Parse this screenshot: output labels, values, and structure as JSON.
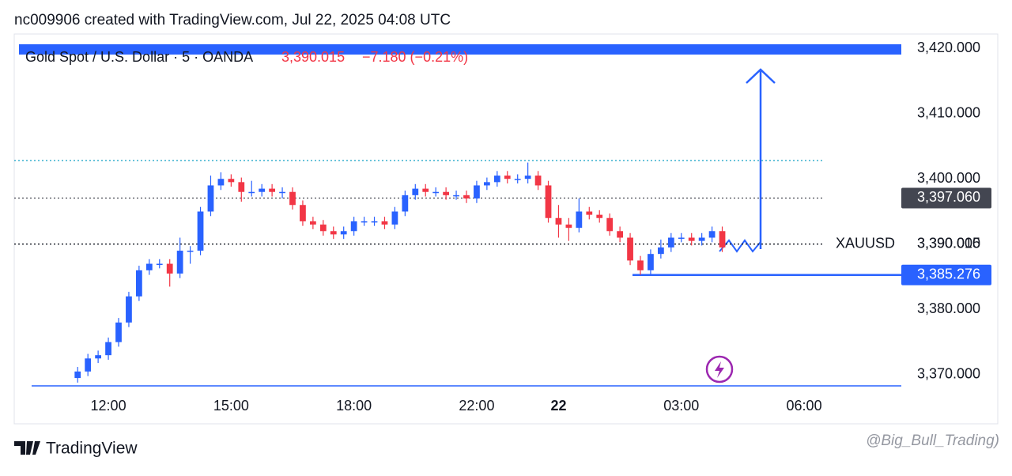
{
  "header": "nc009906 created with TradingView.com, Jul 22, 2025 04:08 UTC",
  "footer": {
    "brand": "TradingView",
    "watermark": "@Big_Bull_Trading)"
  },
  "chart_data": {
    "type": "candlestick",
    "title": "Gold Spot / U.S. Dollar · 5 · OANDA",
    "last_price_label": "3,390.015",
    "change_label": "−7.180 (−0.21%)",
    "up_color": "#2962ff",
    "down_color": "#f23645",
    "categories": [
      null,
      null,
      null,
      null,
      null,
      null,
      null,
      "12:00",
      null,
      null,
      null,
      null,
      null,
      null,
      null,
      null,
      null,
      null,
      null,
      "15:00",
      null,
      null,
      null,
      null,
      null,
      null,
      null,
      null,
      null,
      null,
      null,
      "18:00",
      null,
      null,
      null,
      null,
      null,
      null,
      null,
      null,
      null,
      null,
      null,
      "22:00",
      null,
      null,
      null,
      null,
      null,
      null,
      null,
      "22",
      null,
      null,
      null,
      null,
      null,
      null,
      null,
      null,
      null,
      null,
      null,
      "03:00",
      null,
      null,
      null,
      null,
      null,
      null,
      null,
      null,
      null,
      null,
      null,
      "06:00",
      null,
      null,
      null,
      null,
      null,
      null,
      null,
      null,
      null
    ],
    "open": [
      null,
      null,
      null,
      null,
      3369.5,
      3370.5,
      3372.5,
      3373,
      3375,
      3378,
      3382,
      3386,
      3387,
      3387,
      3385.5,
      3389,
      3389,
      3395,
      3399,
      3400,
      3399.5,
      3398,
      3398,
      3398.5,
      3398,
      3398,
      3396,
      3393.5,
      3393,
      3392,
      3391.5,
      3392,
      3393.5,
      3393.5,
      3393.5,
      3393,
      3395,
      3397.5,
      3398.5,
      3398,
      3398,
      3397.5,
      3397.5,
      3397,
      3399,
      3399.5,
      3400.5,
      3400,
      3400,
      3400.5,
      3399,
      3394,
      3393,
      3392.5,
      3395,
      3394.5,
      3394,
      3392,
      3391,
      3387.5,
      3386,
      3388.5,
      3389.5,
      3391,
      3391,
      3390.5,
      3391,
      3392,
      null,
      null,
      null,
      null,
      null,
      null,
      null,
      null,
      null,
      null,
      null,
      null,
      null,
      null,
      null,
      null,
      null
    ],
    "high": [
      null,
      null,
      null,
      null,
      3371.2,
      3373.2,
      3373.7,
      3375.7,
      3378.7,
      3382.7,
      3386.7,
      3387.7,
      3387.7,
      3387.7,
      3391,
      3389.7,
      3395.7,
      3400.5,
      3401,
      3400.7,
      3400.2,
      3399.7,
      3399.2,
      3399.2,
      3398.7,
      3398.7,
      3396.7,
      3394.2,
      3393.7,
      3392.7,
      3392.7,
      3394.2,
      3394.2,
      3394.2,
      3394.2,
      3395.7,
      3398.2,
      3399.2,
      3399.2,
      3398.7,
      3398.7,
      3398.2,
      3398.2,
      3399.7,
      3400.2,
      3401.2,
      3401.2,
      3400.7,
      3402.5,
      3401.2,
      3399.7,
      3396,
      3394,
      3397,
      3395.7,
      3395.2,
      3394.7,
      3392.7,
      3391.7,
      3388.2,
      3389.2,
      3390.7,
      3391.7,
      3391.7,
      3391.7,
      3391.7,
      3392.7,
      3392.7,
      null,
      null,
      null,
      null,
      null,
      null,
      null,
      null,
      null,
      null,
      null,
      null,
      null,
      null,
      null,
      null,
      null
    ],
    "low": [
      null,
      null,
      null,
      null,
      3368.8,
      3369.8,
      3371.8,
      3372.3,
      3374.3,
      3377.3,
      3381.3,
      3385.3,
      3386.3,
      3383.5,
      3384.8,
      3387,
      3388.3,
      3394.3,
      3398.3,
      3398.8,
      3396.5,
      3397.3,
      3397.3,
      3397.3,
      3397,
      3395.3,
      3392.8,
      3392.3,
      3391.3,
      3390.8,
      3390.8,
      3391.3,
      3392.8,
      3392.8,
      3392.3,
      3392.3,
      3394.3,
      3396.8,
      3397.3,
      3397.3,
      3396.8,
      3396.8,
      3396.3,
      3396.3,
      3398.3,
      3398.8,
      3399.3,
      3399.3,
      3399.3,
      3398.3,
      3393.3,
      3391,
      3390.5,
      3391.8,
      3393.8,
      3393.3,
      3391.3,
      3390.3,
      3386.8,
      3385.3,
      3385.3,
      3387.8,
      3388.8,
      3390.3,
      3389.8,
      3389.8,
      3390.3,
      3388.8,
      null,
      null,
      null,
      null,
      null,
      null,
      null,
      null,
      null,
      null,
      null,
      null,
      null,
      null,
      null,
      null,
      null
    ],
    "close": [
      null,
      null,
      null,
      null,
      3370.5,
      3372.5,
      3373,
      3375,
      3378,
      3382,
      3386,
      3387,
      3387,
      3385.5,
      3389,
      3389,
      3395,
      3399,
      3400,
      3399.5,
      3398,
      3398,
      3398.5,
      3398,
      3398,
      3396,
      3393.5,
      3393,
      3392,
      3391.5,
      3392,
      3393.5,
      3393.5,
      3393.5,
      3393,
      3395,
      3397.5,
      3398.5,
      3398,
      3398,
      3397.5,
      3397.5,
      3397,
      3399,
      3399.5,
      3400.5,
      3400,
      3400,
      3400.5,
      3399,
      3394,
      3393,
      3392.5,
      3395,
      3394.5,
      3394,
      3392,
      3391,
      3387.5,
      3386,
      3388.5,
      3389.5,
      3391,
      3391,
      3390.5,
      3391,
      3392,
      3389.5,
      null,
      null,
      null,
      null,
      null,
      null,
      null,
      null,
      null,
      null,
      null,
      null,
      null,
      null,
      null,
      null,
      null
    ],
    "ylim": [
      3368.3,
      3421.7
    ],
    "yticks": [
      {
        "value": 3370,
        "label": "3,370.000"
      },
      {
        "value": 3380,
        "label": "3,380.000"
      },
      {
        "value": 3390,
        "label": "3,390.000"
      },
      {
        "value": 3400,
        "label": "3,400.000"
      },
      {
        "value": 3410,
        "label": "3,410.000"
      },
      {
        "value": 3420,
        "label": "3,420.000"
      }
    ],
    "price_lines": [
      {
        "value": 3397.06,
        "label": "3,397.060",
        "color": "#434651",
        "style": "dotted"
      },
      {
        "value": 3390.015,
        "label": "3,390.015",
        "symbol": "XAUUSD",
        "color": "#131722",
        "style": "dotted"
      },
      {
        "value": 3385.276,
        "label": "3,385.276",
        "color": "#2962ff",
        "style": "solid"
      },
      {
        "value": 3402.8,
        "color": "#26a8c9",
        "style": "dotted"
      }
    ]
  }
}
